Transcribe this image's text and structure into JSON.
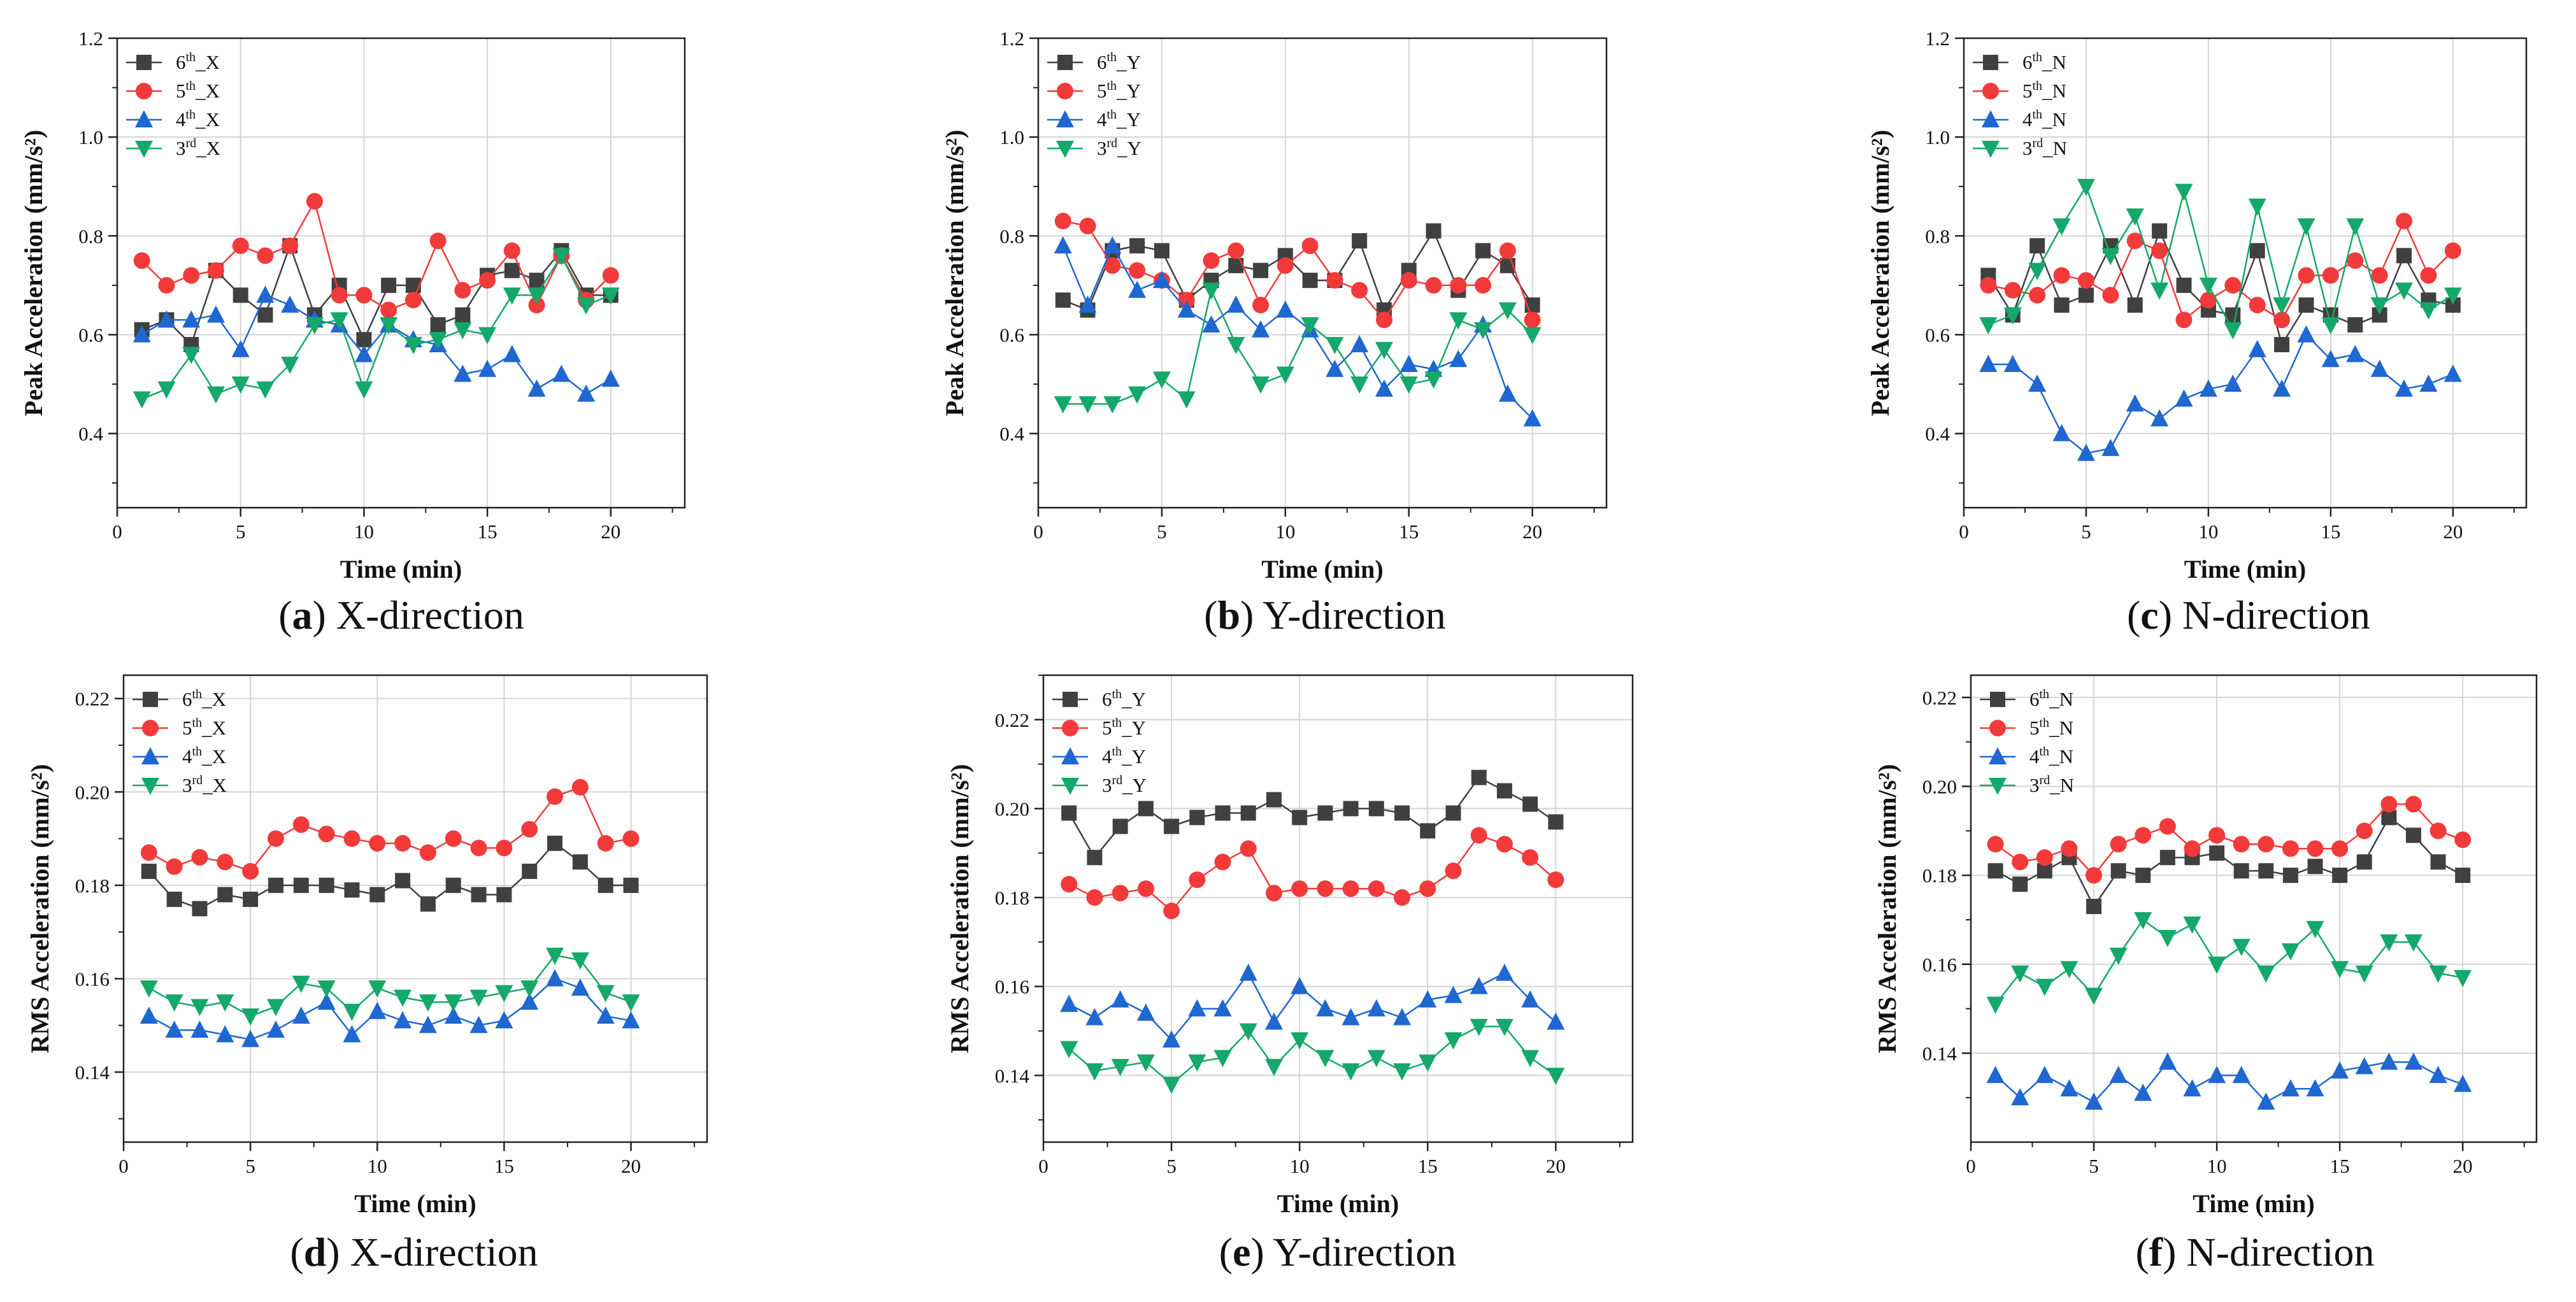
{
  "colors": {
    "6th": "#404040",
    "5th": "#f23a3a",
    "4th": "#1f67d1",
    "3rd": "#14a86a"
  },
  "chart_data": [
    {
      "type": "line",
      "panel": "a",
      "caption": {
        "letter": "a",
        "text": "X-direction"
      },
      "xlabel": "Time (min)",
      "ylabel": "Peak Acceleration (mm/s²)",
      "xlim": [
        0,
        23
      ],
      "ylim": [
        0.25,
        1.2
      ],
      "xticks": [
        0,
        5,
        10,
        15,
        20
      ],
      "yticks": [
        0.4,
        0.6,
        0.8,
        1.0,
        1.2
      ],
      "yticklabels": [
        "0.4",
        "0.6",
        "0.8",
        "1.0",
        "1.2"
      ],
      "x": [
        1,
        2,
        3,
        4,
        5,
        6,
        7,
        8,
        9,
        10,
        11,
        12,
        13,
        14,
        15,
        16,
        17,
        18,
        19,
        20
      ],
      "series": [
        {
          "name": "6th_X",
          "order": "6",
          "sup": "th",
          "suffix": "_X",
          "values": [
            0.61,
            0.63,
            0.58,
            0.73,
            0.68,
            0.64,
            0.78,
            0.64,
            0.7,
            0.59,
            0.7,
            0.7,
            0.62,
            0.64,
            0.72,
            0.73,
            0.71,
            0.77,
            0.68,
            0.68
          ]
        },
        {
          "name": "5th_X",
          "order": "5",
          "sup": "th",
          "suffix": "_X",
          "values": [
            0.75,
            0.7,
            0.72,
            0.73,
            0.78,
            0.76,
            0.78,
            0.87,
            0.68,
            0.68,
            0.65,
            0.67,
            0.79,
            0.69,
            0.71,
            0.77,
            0.66,
            0.76,
            0.67,
            0.72
          ]
        },
        {
          "name": "4th_X",
          "order": "4",
          "sup": "th",
          "suffix": "_X",
          "values": [
            0.6,
            0.63,
            0.63,
            0.64,
            0.57,
            0.68,
            0.66,
            0.63,
            0.62,
            0.56,
            0.62,
            0.59,
            0.58,
            0.52,
            0.53,
            0.56,
            0.49,
            0.52,
            0.48,
            0.51
          ]
        },
        {
          "name": "3rd_X",
          "order": "3",
          "sup": "rd",
          "suffix": "_X",
          "values": [
            0.47,
            0.49,
            0.56,
            0.48,
            0.5,
            0.49,
            0.54,
            0.62,
            0.63,
            0.49,
            0.62,
            0.58,
            0.59,
            0.61,
            0.6,
            0.68,
            0.68,
            0.76,
            0.66,
            0.68
          ]
        }
      ]
    },
    {
      "type": "line",
      "panel": "b",
      "caption": {
        "letter": "b",
        "text": "Y-direction"
      },
      "xlabel": "Time (min)",
      "ylabel": "Peak Acceleration (mm/s²)",
      "xlim": [
        0,
        23
      ],
      "ylim": [
        0.25,
        1.2
      ],
      "xticks": [
        0,
        5,
        10,
        15,
        20
      ],
      "yticks": [
        0.4,
        0.6,
        0.8,
        1.0,
        1.2
      ],
      "yticklabels": [
        "0.4",
        "0.6",
        "0.8",
        "1.0",
        "1.2"
      ],
      "x": [
        1,
        2,
        3,
        4,
        5,
        6,
        7,
        8,
        9,
        10,
        11,
        12,
        13,
        14,
        15,
        16,
        17,
        18,
        19,
        20
      ],
      "series": [
        {
          "name": "6th_Y",
          "order": "6",
          "sup": "th",
          "suffix": "_Y",
          "values": [
            0.67,
            0.65,
            0.77,
            0.78,
            0.77,
            0.67,
            0.71,
            0.74,
            0.73,
            0.76,
            0.71,
            0.71,
            0.79,
            0.65,
            0.73,
            0.81,
            0.69,
            0.77,
            0.74,
            0.66
          ]
        },
        {
          "name": "5th_Y",
          "order": "5",
          "sup": "th",
          "suffix": "_Y",
          "values": [
            0.83,
            0.82,
            0.74,
            0.73,
            0.71,
            0.67,
            0.75,
            0.77,
            0.66,
            0.74,
            0.78,
            0.71,
            0.69,
            0.63,
            0.71,
            0.7,
            0.7,
            0.7,
            0.77,
            0.63
          ]
        },
        {
          "name": "4th_Y",
          "order": "4",
          "sup": "th",
          "suffix": "_Y",
          "values": [
            0.78,
            0.66,
            0.78,
            0.69,
            0.71,
            0.65,
            0.62,
            0.66,
            0.61,
            0.65,
            0.61,
            0.53,
            0.58,
            0.49,
            0.54,
            0.53,
            0.55,
            0.62,
            0.48,
            0.43
          ]
        },
        {
          "name": "3rd_Y",
          "order": "3",
          "sup": "rd",
          "suffix": "_Y",
          "values": [
            0.46,
            0.46,
            0.46,
            0.48,
            0.51,
            0.47,
            0.69,
            0.58,
            0.5,
            0.52,
            0.62,
            0.58,
            0.5,
            0.57,
            0.5,
            0.51,
            0.63,
            0.61,
            0.65,
            0.6
          ]
        }
      ]
    },
    {
      "type": "line",
      "panel": "c",
      "caption": {
        "letter": "c",
        "text": "N-direction"
      },
      "xlabel": "Time (min)",
      "ylabel": "Peak Acceleration (mm/s²)",
      "xlim": [
        0,
        23
      ],
      "ylim": [
        0.25,
        1.2
      ],
      "xticks": [
        0,
        5,
        10,
        15,
        20
      ],
      "yticks": [
        0.4,
        0.6,
        0.8,
        1.0,
        1.2
      ],
      "yticklabels": [
        "0.4",
        "0.6",
        "0.8",
        "1.0",
        "1.2"
      ],
      "x": [
        1,
        2,
        3,
        4,
        5,
        6,
        7,
        8,
        9,
        10,
        11,
        12,
        13,
        14,
        15,
        16,
        17,
        18,
        19,
        20
      ],
      "series": [
        {
          "name": "6th_N",
          "order": "6",
          "sup": "th",
          "suffix": "_N",
          "values": [
            0.72,
            0.64,
            0.78,
            0.66,
            0.68,
            0.78,
            0.66,
            0.81,
            0.7,
            0.65,
            0.64,
            0.77,
            0.58,
            0.66,
            0.64,
            0.62,
            0.64,
            0.76,
            0.67,
            0.66
          ]
        },
        {
          "name": "5th_N",
          "order": "5",
          "sup": "th",
          "suffix": "_N",
          "values": [
            0.7,
            0.69,
            0.68,
            0.72,
            0.71,
            0.68,
            0.79,
            0.77,
            0.63,
            0.67,
            0.7,
            0.66,
            0.63,
            0.72,
            0.72,
            0.75,
            0.72,
            0.83,
            0.72,
            0.77
          ]
        },
        {
          "name": "4th_N",
          "order": "4",
          "sup": "th",
          "suffix": "_N",
          "values": [
            0.54,
            0.54,
            0.5,
            0.4,
            0.36,
            0.37,
            0.46,
            0.43,
            0.47,
            0.49,
            0.5,
            0.57,
            0.49,
            0.6,
            0.55,
            0.56,
            0.53,
            0.49,
            0.5,
            0.52
          ]
        },
        {
          "name": "3rd_N",
          "order": "3",
          "sup": "rd",
          "suffix": "_N",
          "values": [
            0.62,
            0.64,
            0.73,
            0.82,
            0.9,
            0.76,
            0.84,
            0.69,
            0.89,
            0.7,
            0.61,
            0.86,
            0.66,
            0.82,
            0.62,
            0.82,
            0.66,
            0.69,
            0.65,
            0.68
          ]
        }
      ]
    },
    {
      "type": "line",
      "panel": "d",
      "caption": {
        "letter": "d",
        "text": "X-direction"
      },
      "xlabel": "Time (min)",
      "ylabel": "RMS Acceleration (mm/s²)",
      "xlim": [
        0,
        23
      ],
      "ylim": [
        0.125,
        0.225
      ],
      "xticks": [
        0,
        5,
        10,
        15,
        20
      ],
      "yticks": [
        0.14,
        0.16,
        0.18,
        0.2,
        0.22
      ],
      "yticklabels": [
        "0.14",
        "0.16",
        "0.18",
        "0.20",
        "0.22"
      ],
      "x": [
        1,
        2,
        3,
        4,
        5,
        6,
        7,
        8,
        9,
        10,
        11,
        12,
        13,
        14,
        15,
        16,
        17,
        18,
        19,
        20
      ],
      "series": [
        {
          "name": "6th_X",
          "order": "6",
          "sup": "th",
          "suffix": "_X",
          "values": [
            0.183,
            0.177,
            0.175,
            0.178,
            0.177,
            0.18,
            0.18,
            0.18,
            0.179,
            0.178,
            0.181,
            0.176,
            0.18,
            0.178,
            0.178,
            0.183,
            0.189,
            0.185,
            0.18,
            0.18
          ]
        },
        {
          "name": "5th_X",
          "order": "5",
          "sup": "th",
          "suffix": "_X",
          "values": [
            0.187,
            0.184,
            0.186,
            0.185,
            0.183,
            0.19,
            0.193,
            0.191,
            0.19,
            0.189,
            0.189,
            0.187,
            0.19,
            0.188,
            0.188,
            0.192,
            0.199,
            0.201,
            0.189,
            0.19
          ]
        },
        {
          "name": "4th_X",
          "order": "4",
          "sup": "th",
          "suffix": "_X",
          "values": [
            0.152,
            0.149,
            0.149,
            0.148,
            0.147,
            0.149,
            0.152,
            0.155,
            0.148,
            0.153,
            0.151,
            0.15,
            0.152,
            0.15,
            0.151,
            0.155,
            0.16,
            0.158,
            0.152,
            0.151
          ]
        },
        {
          "name": "3rd_X",
          "order": "3",
          "sup": "rd",
          "suffix": "_X",
          "values": [
            0.158,
            0.155,
            0.154,
            0.155,
            0.152,
            0.154,
            0.159,
            0.158,
            0.153,
            0.158,
            0.156,
            0.155,
            0.155,
            0.156,
            0.157,
            0.158,
            0.165,
            0.164,
            0.157,
            0.155
          ]
        }
      ]
    },
    {
      "type": "line",
      "panel": "e",
      "caption": {
        "letter": "e",
        "text": "Y-direction"
      },
      "xlabel": "Time (min)",
      "ylabel": "RMS Acceleration (mm/s²)",
      "xlim": [
        0,
        23
      ],
      "ylim": [
        0.125,
        0.23
      ],
      "xticks": [
        0,
        5,
        10,
        15,
        20
      ],
      "yticks": [
        0.14,
        0.16,
        0.18,
        0.2,
        0.22
      ],
      "yticklabels": [
        "0.14",
        "0.16",
        "0.18",
        "0.20",
        "0.22"
      ],
      "x": [
        1,
        2,
        3,
        4,
        5,
        6,
        7,
        8,
        9,
        10,
        11,
        12,
        13,
        14,
        15,
        16,
        17,
        18,
        19,
        20
      ],
      "series": [
        {
          "name": "6th_Y",
          "order": "6",
          "sup": "th",
          "suffix": "_Y",
          "values": [
            0.199,
            0.189,
            0.196,
            0.2,
            0.196,
            0.198,
            0.199,
            0.199,
            0.202,
            0.198,
            0.199,
            0.2,
            0.2,
            0.199,
            0.195,
            0.199,
            0.207,
            0.204,
            0.201,
            0.197
          ]
        },
        {
          "name": "5th_Y",
          "order": "5",
          "sup": "th",
          "suffix": "_Y",
          "values": [
            0.183,
            0.18,
            0.181,
            0.182,
            0.177,
            0.184,
            0.188,
            0.191,
            0.181,
            0.182,
            0.182,
            0.182,
            0.182,
            0.18,
            0.182,
            0.186,
            0.194,
            0.192,
            0.189,
            0.184
          ]
        },
        {
          "name": "4th_Y",
          "order": "4",
          "sup": "th",
          "suffix": "_Y",
          "values": [
            0.156,
            0.153,
            0.157,
            0.154,
            0.148,
            0.155,
            0.155,
            0.163,
            0.152,
            0.16,
            0.155,
            0.153,
            0.155,
            0.153,
            0.157,
            0.158,
            0.16,
            0.163,
            0.157,
            0.152
          ]
        },
        {
          "name": "3rd_Y",
          "order": "3",
          "sup": "rd",
          "suffix": "_Y",
          "values": [
            0.146,
            0.141,
            0.142,
            0.143,
            0.138,
            0.143,
            0.144,
            0.15,
            0.142,
            0.148,
            0.144,
            0.141,
            0.144,
            0.141,
            0.143,
            0.148,
            0.151,
            0.151,
            0.144,
            0.14
          ]
        }
      ]
    },
    {
      "type": "line",
      "panel": "f",
      "caption": {
        "letter": "f",
        "text": "N-direction"
      },
      "xlabel": "Time (min)",
      "ylabel": "RMS Acceleration (mm/s²)",
      "xlim": [
        0,
        23
      ],
      "ylim": [
        0.12,
        0.225
      ],
      "xticks": [
        0,
        5,
        10,
        15,
        20
      ],
      "yticks": [
        0.14,
        0.16,
        0.18,
        0.2,
        0.22
      ],
      "yticklabels": [
        "0.14",
        "0.16",
        "0.18",
        "0.20",
        "0.22"
      ],
      "x": [
        1,
        2,
        3,
        4,
        5,
        6,
        7,
        8,
        9,
        10,
        11,
        12,
        13,
        14,
        15,
        16,
        17,
        18,
        19,
        20
      ],
      "series": [
        {
          "name": "6th_N",
          "order": "6",
          "sup": "th",
          "suffix": "_N",
          "values": [
            0.181,
            0.178,
            0.181,
            0.184,
            0.173,
            0.181,
            0.18,
            0.184,
            0.184,
            0.185,
            0.181,
            0.181,
            0.18,
            0.182,
            0.18,
            0.183,
            0.193,
            0.189,
            0.183,
            0.18
          ]
        },
        {
          "name": "5th_N",
          "order": "5",
          "sup": "th",
          "suffix": "_N",
          "values": [
            0.187,
            0.183,
            0.184,
            0.186,
            0.18,
            0.187,
            0.189,
            0.191,
            0.186,
            0.189,
            0.187,
            0.187,
            0.186,
            0.186,
            0.186,
            0.19,
            0.196,
            0.196,
            0.19,
            0.188
          ]
        },
        {
          "name": "4th_N",
          "order": "4",
          "sup": "th",
          "suffix": "_N",
          "values": [
            0.135,
            0.13,
            0.135,
            0.132,
            0.129,
            0.135,
            0.131,
            0.138,
            0.132,
            0.135,
            0.135,
            0.129,
            0.132,
            0.132,
            0.136,
            0.137,
            0.138,
            0.138,
            0.135,
            0.133
          ]
        },
        {
          "name": "3rd_N",
          "order": "3",
          "sup": "rd",
          "suffix": "_N",
          "values": [
            0.151,
            0.158,
            0.155,
            0.159,
            0.153,
            0.162,
            0.17,
            0.166,
            0.169,
            0.16,
            0.164,
            0.158,
            0.163,
            0.168,
            0.159,
            0.158,
            0.165,
            0.165,
            0.158,
            0.157
          ]
        }
      ]
    }
  ]
}
